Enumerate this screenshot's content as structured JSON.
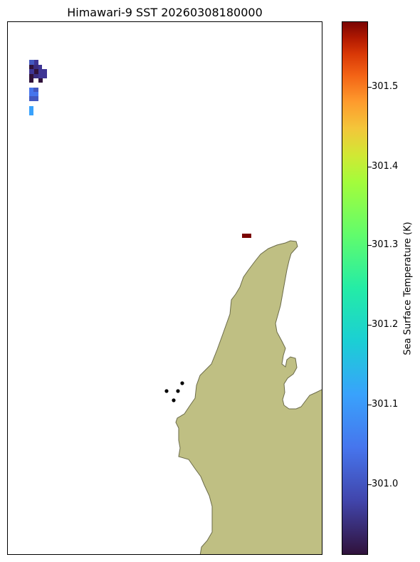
{
  "title": "Himawari-9 SST 20260308180000",
  "colorbar": {
    "label": "Sea Surface Temperature (K)",
    "ticks": [
      "301.0",
      "301.1",
      "301.2",
      "301.3",
      "301.4",
      "301.5"
    ],
    "range": [
      300.92,
      301.58
    ],
    "colormap": "turbo"
  },
  "map": {
    "land_color": "#bfbf83",
    "coast_color": "#6b6b4a",
    "markers": {
      "color": "#000000",
      "count": 4
    },
    "sst_pixels": {
      "cold_cluster_colors": [
        "#30123b",
        "#3e3594",
        "#4358c0",
        "#4675ed",
        "#39a2fc"
      ],
      "warm_pixel_color": "#7a0403"
    }
  }
}
